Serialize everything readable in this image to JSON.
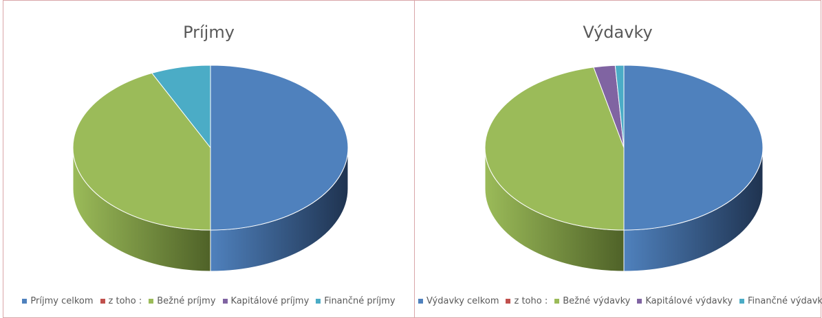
{
  "chart_data": [
    {
      "type": "pie",
      "title": "Príjmy",
      "categories": [
        "Príjmy celkom",
        "z toho :",
        "Bežné príjmy",
        "Kapitálové príjmy",
        "Finančné príjmy"
      ],
      "values": [
        50,
        0,
        43,
        0,
        7
      ],
      "colors": [
        "#4f81bd",
        "#c0504d",
        "#9bbb59",
        "#8064a2",
        "#4bacc6"
      ],
      "side_colors": [
        "#1f3350",
        "#5a2524",
        "#4f6228",
        "#3f3151",
        "#215968"
      ],
      "legend_position": "bottom",
      "style": "3d"
    },
    {
      "type": "pie",
      "title": "Výdavky",
      "categories": [
        "Výdavky celkom",
        "z toho :",
        "Bežné výdavky",
        "Kapitálové výdavky",
        "Finančné výdavky"
      ],
      "values": [
        50,
        0,
        46.5,
        2.5,
        1
      ],
      "colors": [
        "#4f81bd",
        "#c0504d",
        "#9bbb59",
        "#8064a2",
        "#4bacc6"
      ],
      "side_colors": [
        "#1f3350",
        "#5a2524",
        "#4f6228",
        "#3f3151",
        "#215968"
      ],
      "legend_position": "bottom",
      "style": "3d"
    }
  ]
}
